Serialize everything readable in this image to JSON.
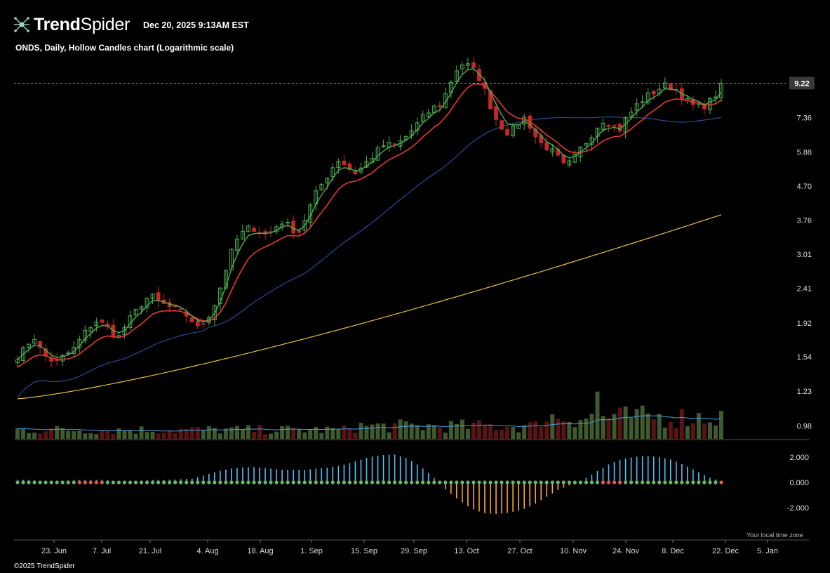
{
  "header": {
    "brand_bold": "Trend",
    "brand_light": "Spider",
    "datestamp": "Dec 20, 2025 9:13AM EST",
    "subtitle": "ONDS, Daily, Hollow Candles chart (Logarithmic scale)"
  },
  "footer": {
    "copyright": "©2025 TrendSpider",
    "timezone_note": "Your local time zone"
  },
  "colors": {
    "background": "#000000",
    "up": "#4caf50",
    "down": "#c62828",
    "ema_fast": "#4caf50",
    "ema_slow": "#e53935",
    "sma_mid": "#2b4a9a",
    "sma_long": "#e8c040",
    "volume_up": "#3f5a2e",
    "volume_down": "#5a1414",
    "volume_avg": "#4a9fe0",
    "osc_pos": "#4fc3f7",
    "osc_neg": "#ffa726",
    "dot_green": "#66bb6a",
    "dot_red": "#ef5350",
    "last_price_tag_bg": "#3a3a3a",
    "axis_text": "#dddddd"
  },
  "chart_data": {
    "type": "candlestick",
    "scale": "log",
    "ylim": [
      0.9,
      11.0
    ],
    "price_ticks": [
      "9.22",
      "7.36",
      "5.88",
      "4.70",
      "3.76",
      "3.01",
      "2.41",
      "1.92",
      "1.54",
      "1.23",
      "0.98"
    ],
    "last_price": "9.22",
    "x_tick_labels": [
      "23. Jun",
      "7. Jul",
      "21. Jul",
      "4. Aug",
      "18. Aug",
      "1. Sep",
      "15. Sep",
      "29. Sep",
      "13. Oct",
      "27. Oct",
      "10. Nov",
      "24. Nov",
      "8. Dec",
      "22. Dec",
      "5. Jan"
    ],
    "close_path": [
      1.55,
      1.62,
      1.78,
      1.6,
      1.52,
      1.48,
      1.55,
      1.6,
      1.72,
      1.85,
      1.95,
      1.9,
      1.82,
      1.75,
      1.92,
      2.05,
      2.2,
      2.3,
      2.2,
      2.15,
      2.1,
      2.05,
      2.0,
      1.85,
      1.95,
      2.1,
      2.45,
      2.9,
      3.3,
      3.5,
      3.6,
      3.5,
      3.4,
      3.6,
      3.75,
      3.55,
      3.5,
      3.9,
      4.4,
      4.8,
      5.2,
      5.6,
      5.4,
      5.1,
      5.3,
      5.6,
      5.9,
      6.2,
      6.1,
      6.3,
      6.6,
      7.0,
      7.4,
      7.8,
      8.0,
      8.8,
      10.0,
      10.5,
      10.2,
      9.6,
      8.5,
      7.4,
      6.9,
      6.6,
      7.1,
      7.4,
      6.6,
      6.2,
      6.0,
      5.7,
      5.3,
      5.55,
      6.0,
      6.4,
      6.9,
      7.3,
      7.0,
      6.8,
      7.4,
      7.9,
      8.3,
      8.6,
      8.9,
      9.1,
      8.9,
      8.5,
      8.0,
      7.9,
      8.0,
      8.3,
      9.22
    ],
    "oscillator_ylim": [
      -2.6,
      2.6
    ],
    "oscillator_ticks": [
      "2.000",
      "0.000",
      "-2.000"
    ],
    "oscillator_path": [
      0.2,
      0.2,
      0.1,
      0.1,
      0.15,
      0.2,
      0.2,
      0.2,
      0.1,
      0.1,
      0.15,
      0.2,
      0.2,
      0.25,
      0.3,
      0.6,
      0.9,
      1.1,
      1.2,
      1.2,
      1.1,
      1.0,
      1.0,
      1.0,
      1.1,
      1.2,
      1.4,
      1.7,
      2.0,
      2.15,
      2.2,
      1.9,
      1.3,
      0.5,
      -0.5,
      -1.3,
      -2.0,
      -2.4,
      -2.5,
      -2.4,
      -2.2,
      -1.8,
      -1.2,
      -0.6,
      -0.2,
      0.2,
      0.8,
      1.4,
      1.8,
      2.0,
      2.1,
      2.0,
      1.8,
      1.4,
      0.9,
      0.4,
      0.1
    ]
  }
}
